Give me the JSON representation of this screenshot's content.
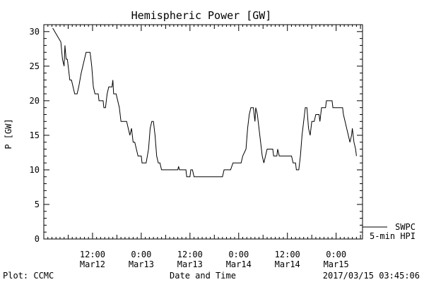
{
  "chart_data": {
    "type": "line",
    "title": "Hemispheric Power [GW]",
    "xlabel": "Date and Time",
    "ylabel": "P [GW]",
    "ylim": [
      0,
      31
    ],
    "xlim_hours": [
      0,
      78.5
    ],
    "yticks": [
      "0",
      "5",
      "10",
      "15",
      "20",
      "25",
      "30"
    ],
    "xticks": [
      {
        "time": "12:00",
        "date": "Mar12",
        "hour": 12
      },
      {
        "time": "0:00",
        "date": "Mar13",
        "hour": 24
      },
      {
        "time": "12:00",
        "date": "Mar13",
        "hour": 36
      },
      {
        "time": "0:00",
        "date": "Mar14",
        "hour": 48
      },
      {
        "time": "12:00",
        "date": "Mar14",
        "hour": 60
      },
      {
        "time": "0:00",
        "date": "Mar15",
        "hour": 72
      }
    ],
    "legend": {
      "name": "SWPC",
      "sub": "5-min HPI"
    },
    "grid": false,
    "series": [
      {
        "name": "SWPC",
        "color": "#000000",
        "points": [
          [
            2.2,
            30.5
          ],
          [
            4.2,
            28.5
          ],
          [
            4.6,
            26
          ],
          [
            5.0,
            25
          ],
          [
            5.2,
            28
          ],
          [
            5.5,
            26
          ],
          [
            5.8,
            26
          ],
          [
            6.0,
            25
          ],
          [
            6.4,
            23
          ],
          [
            6.8,
            23
          ],
          [
            7.2,
            22
          ],
          [
            7.6,
            21
          ],
          [
            8.2,
            21
          ],
          [
            8.6,
            22
          ],
          [
            9.2,
            24
          ],
          [
            9.6,
            25
          ],
          [
            10.0,
            26
          ],
          [
            10.4,
            27
          ],
          [
            11.4,
            27
          ],
          [
            11.8,
            25
          ],
          [
            12.2,
            22
          ],
          [
            12.6,
            21
          ],
          [
            13.4,
            21
          ],
          [
            13.6,
            20
          ],
          [
            14.6,
            20
          ],
          [
            14.8,
            19
          ],
          [
            15.2,
            19
          ],
          [
            15.6,
            21
          ],
          [
            16.0,
            22
          ],
          [
            16.8,
            22
          ],
          [
            17.0,
            23
          ],
          [
            17.2,
            21
          ],
          [
            17.8,
            21
          ],
          [
            18.2,
            20
          ],
          [
            18.6,
            19
          ],
          [
            19.0,
            17
          ],
          [
            20.4,
            17
          ],
          [
            20.8,
            16
          ],
          [
            21.2,
            15
          ],
          [
            21.6,
            16
          ],
          [
            22.0,
            14
          ],
          [
            22.4,
            14
          ],
          [
            23.2,
            12
          ],
          [
            24.0,
            12
          ],
          [
            24.2,
            11
          ],
          [
            25.2,
            11
          ],
          [
            25.8,
            13
          ],
          [
            26.2,
            16
          ],
          [
            26.6,
            17
          ],
          [
            27.0,
            17
          ],
          [
            27.4,
            15
          ],
          [
            27.8,
            12
          ],
          [
            28.2,
            11
          ],
          [
            28.6,
            11
          ],
          [
            29.0,
            10
          ],
          [
            33.0,
            10
          ],
          [
            33.2,
            10.5
          ],
          [
            33.4,
            10
          ],
          [
            35.0,
            10
          ],
          [
            35.2,
            9
          ],
          [
            35.8,
            9
          ],
          [
            36.0,
            9
          ],
          [
            36.2,
            10
          ],
          [
            36.6,
            10
          ],
          [
            37.0,
            9
          ],
          [
            44.0,
            9
          ],
          [
            44.4,
            10
          ],
          [
            46.0,
            10
          ],
          [
            46.6,
            11
          ],
          [
            48.6,
            11
          ],
          [
            49.0,
            12
          ],
          [
            49.8,
            13
          ],
          [
            50.2,
            16
          ],
          [
            50.6,
            18
          ],
          [
            51.0,
            19
          ],
          [
            51.6,
            19
          ],
          [
            52.0,
            17
          ],
          [
            52.2,
            19
          ],
          [
            52.6,
            18
          ],
          [
            53.0,
            16
          ],
          [
            53.4,
            14
          ],
          [
            53.8,
            12
          ],
          [
            54.2,
            11
          ],
          [
            54.6,
            12
          ],
          [
            55.0,
            13
          ],
          [
            56.4,
            13
          ],
          [
            56.6,
            12
          ],
          [
            57.4,
            12
          ],
          [
            57.6,
            13
          ],
          [
            58.0,
            12
          ],
          [
            61.0,
            12
          ],
          [
            61.4,
            11
          ],
          [
            62.0,
            11
          ],
          [
            62.2,
            10
          ],
          [
            62.8,
            10
          ],
          [
            63.2,
            12
          ],
          [
            63.6,
            15
          ],
          [
            64.0,
            17
          ],
          [
            64.4,
            19
          ],
          [
            64.8,
            19
          ],
          [
            65.2,
            16
          ],
          [
            65.6,
            15
          ],
          [
            66.0,
            17
          ],
          [
            66.6,
            17
          ],
          [
            67.0,
            18
          ],
          [
            67.8,
            18
          ],
          [
            68.0,
            17
          ],
          [
            68.4,
            19
          ],
          [
            69.4,
            19
          ],
          [
            69.6,
            20
          ],
          [
            71.0,
            20
          ],
          [
            71.2,
            19
          ],
          [
            73.6,
            19
          ],
          [
            73.8,
            18
          ],
          [
            74.2,
            17
          ],
          [
            74.6,
            16
          ],
          [
            75.0,
            15
          ],
          [
            75.4,
            14
          ],
          [
            75.8,
            15
          ],
          [
            76.0,
            16
          ],
          [
            76.4,
            14
          ],
          [
            76.8,
            13
          ],
          [
            77.0,
            12
          ]
        ]
      }
    ]
  },
  "footer": {
    "left": "Plot: CCMC",
    "right": "2017/03/15 03:45:06"
  }
}
